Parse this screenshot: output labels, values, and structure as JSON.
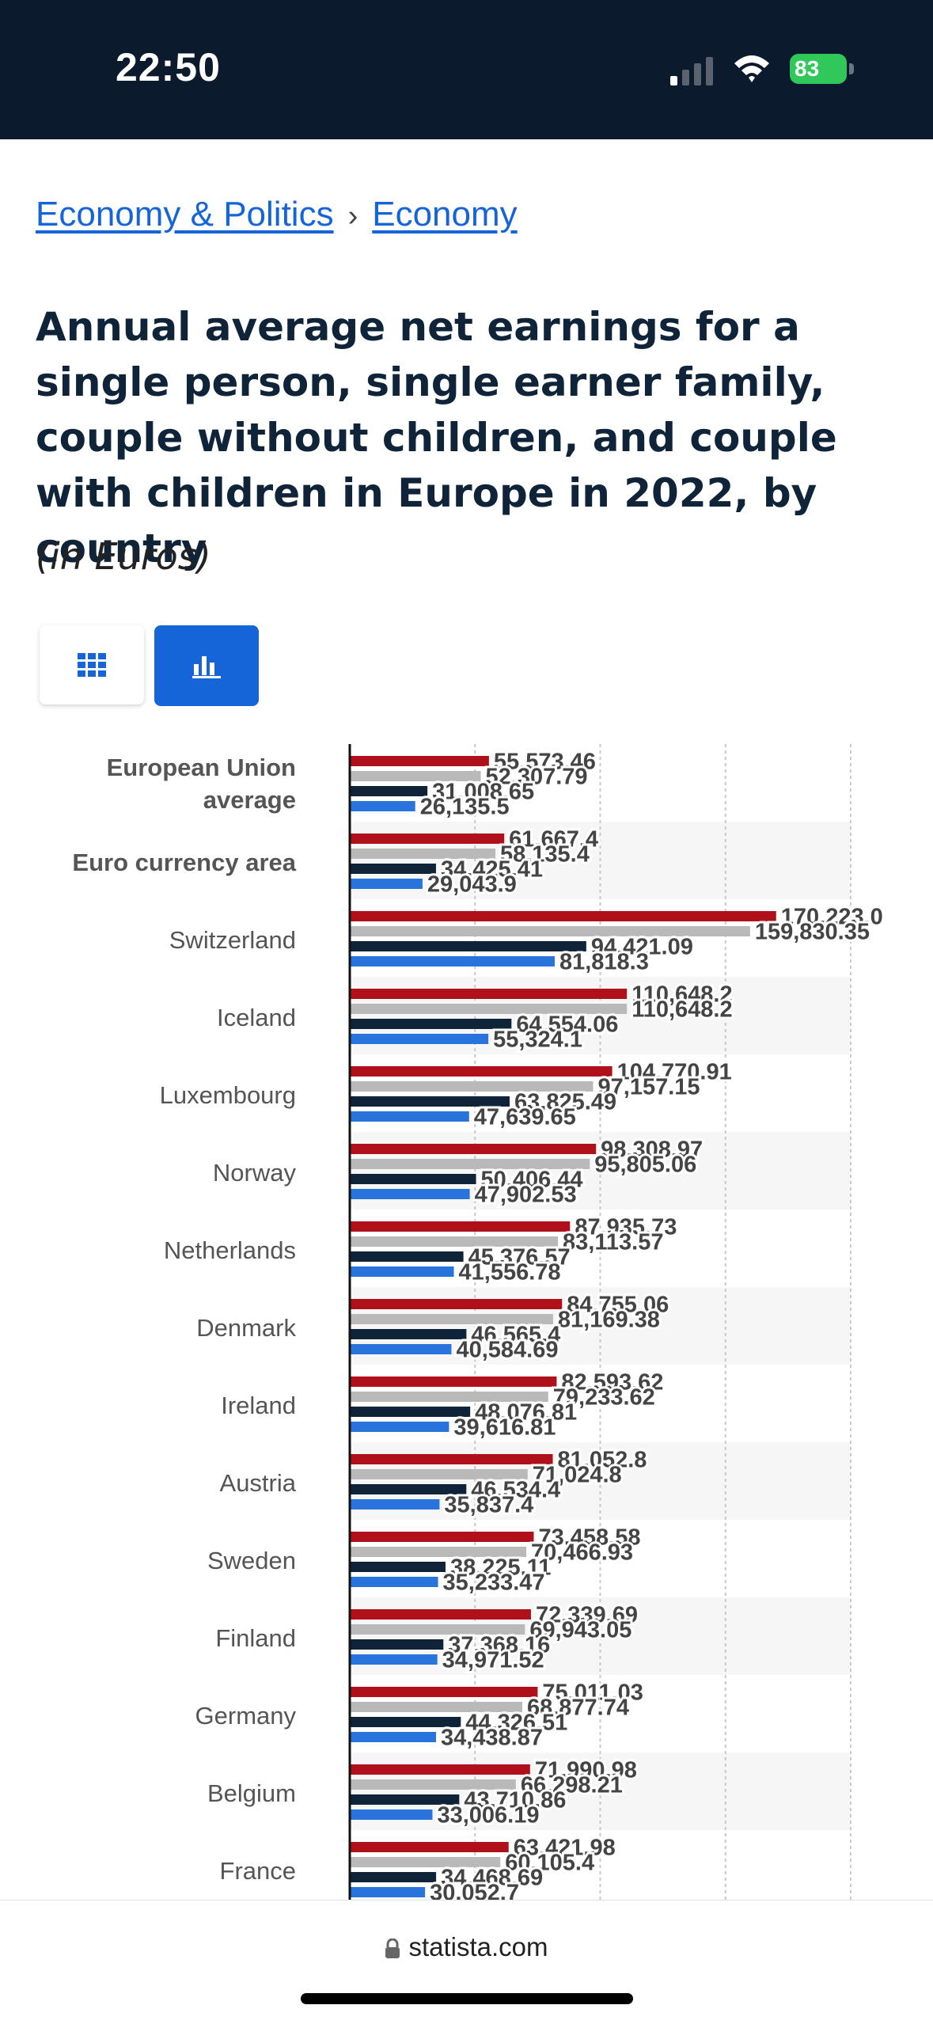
{
  "status_bar": {
    "time": "22:50",
    "battery": "83"
  },
  "breadcrumb": {
    "item1": "Economy & Politics",
    "separator": "›",
    "item2": "Economy"
  },
  "title": "Annual average net earnings for a single person, single earner family, couple without children, and couple with children in Europe in 2022, by country",
  "subtitle": "(in Euros)",
  "view_toggle": {
    "table_icon": "grid-icon",
    "chart_icon": "bar-chart-icon",
    "active": "chart"
  },
  "footer": {
    "url": "statista.com"
  },
  "colors": {
    "series1": "#b0101a",
    "series2": "#b9b9b9",
    "series3": "#0f2339",
    "series4": "#2873dc",
    "accent": "#1565d8"
  },
  "chart_data": {
    "type": "bar",
    "orientation": "horizontal",
    "grid": true,
    "categories": [
      "European Union average",
      "Euro currency area",
      "Switzerland",
      "Iceland",
      "Luxembourg",
      "Norway",
      "Netherlands",
      "Denmark",
      "Ireland",
      "Austria",
      "Sweden",
      "Finland",
      "Germany",
      "Belgium",
      "France"
    ],
    "series": [
      {
        "values": [
          55573.46,
          61667.4,
          170223.0,
          110648.2,
          104770.91,
          98308.97,
          87935.73,
          84755.06,
          82593.62,
          81052.8,
          73458.58,
          72339.69,
          75011.03,
          71990.98,
          63421.98
        ],
        "labels": [
          "55,573.46",
          "61,667.4",
          "170,223.0",
          "110,648.2",
          "104,770.91",
          "98,308.97",
          "87,935.73",
          "84,755.06",
          "82,593.62",
          "81,052.8",
          "73,458.58",
          "72,339.69",
          "75,011.03",
          "71,990.98",
          "63,421.98"
        ]
      },
      {
        "values": [
          52307.79,
          58135.4,
          159830.35,
          110648.2,
          97157.15,
          95805.06,
          83113.57,
          81169.38,
          79233.62,
          71024.8,
          70466.93,
          69943.05,
          68877.74,
          66298.21,
          60105.4
        ],
        "labels": [
          "52,307.79",
          "58,135.4",
          "159,830.35",
          "110,648.2",
          "97,157.15",
          "95,805.06",
          "83,113.57",
          "81,169.38",
          "79,233.62",
          "71,024.8",
          "70,466.93",
          "69,943.05",
          "68,877.74",
          "66,298.21",
          "60,105.4"
        ]
      },
      {
        "values": [
          31008.65,
          34425.41,
          94421.09,
          64554.06,
          63825.49,
          50406.44,
          45376.57,
          46565.4,
          48076.81,
          46534.4,
          38225.11,
          37368.16,
          44326.51,
          43710.86,
          34468.69
        ],
        "labels": [
          "31,008.65",
          "34,425.41",
          "94,421.09",
          "64,554.06",
          "63,825.49",
          "50,406.44",
          "45,376.57",
          "46,565.4",
          "48,076.81",
          "46,534.4",
          "38,225.11",
          "37,368.16",
          "44,326.51",
          "43,710.86",
          "34,468.69"
        ]
      },
      {
        "values": [
          26135.5,
          29043.9,
          81818.3,
          55324.1,
          47639.65,
          47902.53,
          41556.78,
          40584.69,
          39616.81,
          35837.4,
          35233.47,
          34971.52,
          34438.87,
          33006.19,
          30052.7
        ],
        "labels": [
          "26,135.5",
          "29,043.9",
          "81,818.3",
          "55,324.1",
          "47,639.65",
          "47,902.53",
          "41,556.78",
          "40,584.69",
          "39,616.81",
          "35,837.4",
          "35,233.47",
          "34,971.52",
          "34,438.87",
          "33,006.19",
          "30,052.7"
        ]
      }
    ],
    "xlim": [
      0,
      200000
    ],
    "gridlines": [
      50000,
      100000,
      150000,
      200000
    ]
  }
}
